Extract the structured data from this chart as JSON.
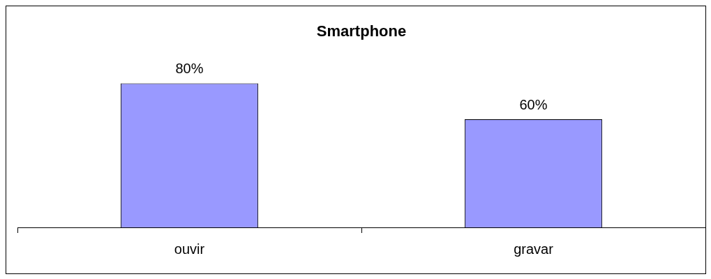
{
  "chart_data": {
    "type": "bar",
    "title": "Smartphone",
    "categories": [
      "ouvir",
      "gravar"
    ],
    "values": [
      80,
      60
    ],
    "value_labels": [
      "80%",
      "60%"
    ],
    "color": "#9999ff",
    "grid": false,
    "legend": false
  }
}
